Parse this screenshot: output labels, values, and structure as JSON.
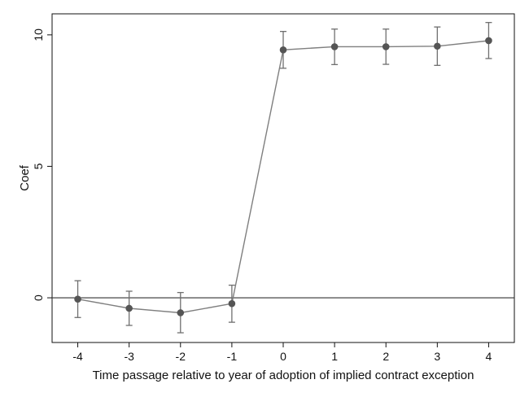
{
  "chart_data": {
    "type": "line",
    "xlabel": "Time passage relative to year of adoption of implied contract exception",
    "ylabel": "Coef",
    "xlim": [
      -4.5,
      4.5
    ],
    "ylim": [
      -1.7,
      10.8
    ],
    "x_ticks": [
      -4,
      -3,
      -2,
      -1,
      0,
      1,
      2,
      3,
      4
    ],
    "y_ticks": [
      0,
      5,
      10
    ],
    "reference_line_y": 0,
    "grid": false,
    "legend": "none",
    "series": [
      {
        "x": [
          -4,
          -3,
          -2,
          -1,
          0,
          1,
          2,
          3,
          4
        ],
        "values": [
          -0.05,
          -0.4,
          -0.57,
          -0.22,
          9.43,
          9.55,
          9.55,
          9.57,
          9.78
        ],
        "ci_low": [
          -0.75,
          -1.05,
          -1.33,
          -0.93,
          8.73,
          8.87,
          8.88,
          8.84,
          9.1
        ],
        "ci_high": [
          0.65,
          0.25,
          0.2,
          0.48,
          10.13,
          10.22,
          10.22,
          10.3,
          10.47
        ]
      }
    ],
    "colors": {
      "line": "#7f7f7f",
      "marker": "#555555",
      "error_bar": "#6f6f6f",
      "axis": "#111111",
      "reference_line": "#333333"
    }
  }
}
